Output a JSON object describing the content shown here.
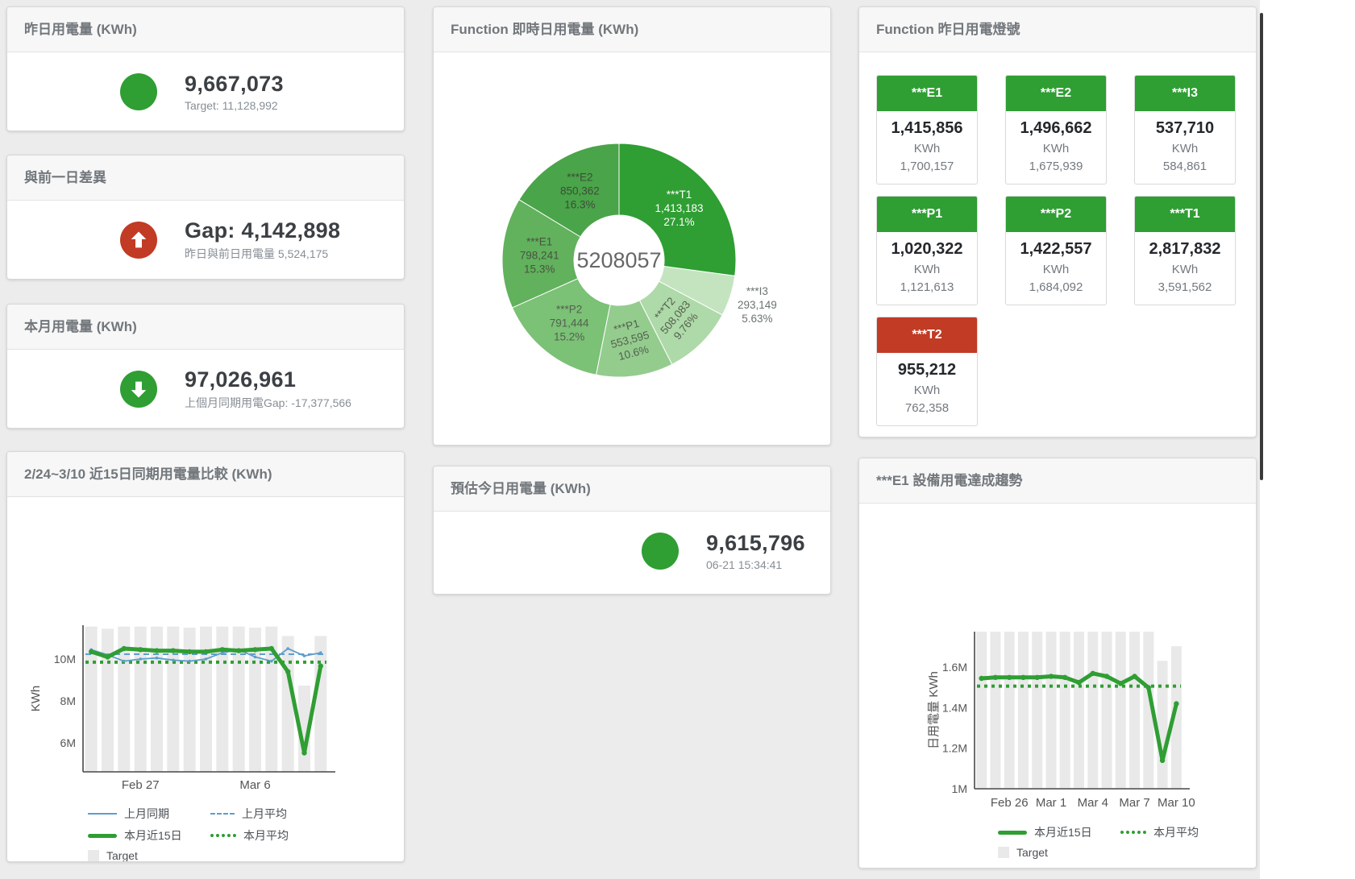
{
  "colors": {
    "primary_green": "#2f9e33",
    "alert_red": "#c13b25",
    "line_blue": "#5f9ecd",
    "target_bar_gray": "#e9e9e9",
    "page_bg": "#ececec"
  },
  "cards": {
    "yesterday": {
      "title": "昨日用電量 (KWh)",
      "value": "9,667,073",
      "subtitle": "Target: 11,128,992"
    },
    "gap": {
      "title": "與前一日差異",
      "value": "Gap: 4,142,898",
      "subtitle": "昨日與前日用電量 5,524,175"
    },
    "month": {
      "title": "本月用電量 (KWh)",
      "value": "97,026,961",
      "subtitle": "上個月同期用電Gap: -17,377,566"
    },
    "forecast": {
      "title": "預估今日用電量 (KWh)",
      "value": "9,615,796",
      "subtitle": "06-21 15:34:41"
    }
  },
  "lights": {
    "title": "Function 昨日用電燈號",
    "tiles": [
      {
        "label": "***E1",
        "value": "1,415,856",
        "unit": "KWh",
        "target": "1,700,157",
        "color": "#2f9e33"
      },
      {
        "label": "***E2",
        "value": "1,496,662",
        "unit": "KWh",
        "target": "1,675,939",
        "color": "#2f9e33"
      },
      {
        "label": "***I3",
        "value": "537,710",
        "unit": "KWh",
        "target": "584,861",
        "color": "#2f9e33"
      },
      {
        "label": "***P1",
        "value": "1,020,322",
        "unit": "KWh",
        "target": "1,121,613",
        "color": "#2f9e33"
      },
      {
        "label": "***P2",
        "value": "1,422,557",
        "unit": "KWh",
        "target": "1,684,092",
        "color": "#2f9e33"
      },
      {
        "label": "***T1",
        "value": "2,817,832",
        "unit": "KWh",
        "target": "3,591,562",
        "color": "#2f9e33"
      },
      {
        "label": "***T2",
        "value": "955,212",
        "unit": "KWh",
        "target": "762,358",
        "color": "#c13b25"
      }
    ]
  },
  "chart_data": [
    {
      "id": "realtime_donut",
      "type": "pie",
      "title": "Function 即時日用電量 (KWh)",
      "center_total": "5208057",
      "slices": [
        {
          "label": "***T1",
          "value": 1413183,
          "display_value": "1,413,183",
          "pct": "27.1%",
          "color": "#2f9e33",
          "label_color": "#ffffff"
        },
        {
          "label": "***I3",
          "value": 293149,
          "display_value": "293,149",
          "pct": "5.63%",
          "color": "#c4e4c0",
          "label_color": "#6b7470",
          "label_r": 180
        },
        {
          "label": "***T2",
          "value": 508083,
          "display_value": "508,083",
          "pct": "9.76%",
          "color": "#aed9a8",
          "label_color": "#54604f",
          "label_rotation": -50
        },
        {
          "label": "***P1",
          "value": 553595,
          "display_value": "553,595",
          "pct": "10.6%",
          "color": "#94cc8e",
          "label_color": "#54604f",
          "label_rotation": -15
        },
        {
          "label": "***P2",
          "value": 791444,
          "display_value": "791,444",
          "pct": "15.2%",
          "color": "#7bc176",
          "label_color": "#54604f"
        },
        {
          "label": "***E1",
          "value": 798241,
          "display_value": "798,241",
          "pct": "15.3%",
          "color": "#61b15d",
          "label_color": "#48543f"
        },
        {
          "label": "***E2",
          "value": 850362,
          "display_value": "850,362",
          "pct": "16.3%",
          "color": "#4aa449",
          "label_color": "#3d4c3a"
        }
      ]
    },
    {
      "id": "compare",
      "type": "line+bar",
      "title": "2/24~3/10 近15日同期用電量比較 (KWh)",
      "ylabel": "KWh",
      "n": 15,
      "ylim": [
        4.615,
        11.615
      ],
      "y_ticks": [
        {
          "v": 6,
          "label": "6M"
        },
        {
          "v": 8,
          "label": "8M"
        },
        {
          "v": 10,
          "label": "10M"
        }
      ],
      "x_ticks": [
        {
          "i": 3,
          "label": "Feb 27"
        },
        {
          "i": 10,
          "label": "Mar 6"
        }
      ],
      "bar_color": "#e9e9e9",
      "target": [
        11.55,
        11.45,
        11.55,
        11.55,
        11.55,
        11.55,
        11.5,
        11.55,
        11.55,
        11.55,
        11.5,
        11.55,
        11.1,
        8.73,
        11.1
      ],
      "series": [
        {
          "kind": "hline",
          "name": "上月平均",
          "color": "#5f9ecd",
          "style": "dashed",
          "value": 10.23
        },
        {
          "kind": "hline",
          "name": "本月平均",
          "color": "#2f9e33",
          "style": "dotted",
          "value": 9.85
        },
        {
          "kind": "line",
          "name": "上月同期",
          "color": "#5f9ecd",
          "style": "thin",
          "values": [
            10.45,
            10.2,
            9.9,
            10.0,
            10.05,
            9.95,
            9.9,
            10.0,
            10.3,
            10.45,
            10.1,
            9.9,
            10.5,
            10.15,
            10.3
          ]
        },
        {
          "kind": "line",
          "name": "本月近15日",
          "color": "#2f9e33",
          "style": "thick",
          "values": [
            10.35,
            10.1,
            10.5,
            10.45,
            10.4,
            10.4,
            10.35,
            10.35,
            10.45,
            10.4,
            10.45,
            10.5,
            9.4,
            5.52,
            9.67
          ]
        }
      ],
      "legend": [
        {
          "type": "line-thin",
          "color": "#5f9ecd",
          "label": "上月同期"
        },
        {
          "type": "line-dashed",
          "color": "#5f9ecd",
          "label": "上月平均"
        },
        {
          "type": "line-thick",
          "color": "#2f9e33",
          "label": "本月近15日"
        },
        {
          "type": "line-dotted",
          "color": "#2f9e33",
          "label": "本月平均"
        },
        {
          "type": "square",
          "color": "#e9e9e9",
          "label": "Target"
        }
      ]
    },
    {
      "id": "trend",
      "type": "line+bar",
      "title": "***E1 設備用電達成趨勢",
      "ylabel": "日用電量 KWh",
      "n": 15,
      "ylim": [
        1.0,
        1.776
      ],
      "y_ticks": [
        {
          "v": 1,
          "label": "1M"
        },
        {
          "v": 1.2,
          "label": "1.2M"
        },
        {
          "v": 1.4,
          "label": "1.4M"
        },
        {
          "v": 1.6,
          "label": "1.6M"
        }
      ],
      "x_ticks": [
        {
          "i": 2,
          "label": "Feb 26"
        },
        {
          "i": 5,
          "label": "Mar 1"
        },
        {
          "i": 8,
          "label": "Mar 4"
        },
        {
          "i": 11,
          "label": "Mar 7"
        },
        {
          "i": 14,
          "label": "Mar 10"
        }
      ],
      "bar_color": "#e9e9e9",
      "target": [
        1.776,
        1.776,
        1.776,
        1.776,
        1.776,
        1.776,
        1.776,
        1.776,
        1.776,
        1.776,
        1.776,
        1.776,
        1.776,
        1.632,
        1.704
      ],
      "series": [
        {
          "kind": "hline",
          "name": "本月平均",
          "color": "#2f9e33",
          "style": "dotted",
          "value": 1.507
        },
        {
          "kind": "line",
          "name": "本月近15日",
          "color": "#2f9e33",
          "style": "thick",
          "values": [
            1.545,
            1.55,
            1.55,
            1.55,
            1.55,
            1.555,
            1.55,
            1.525,
            1.57,
            1.555,
            1.52,
            1.555,
            1.5,
            1.14,
            1.42
          ]
        }
      ],
      "legend": [
        {
          "type": "line-thick",
          "color": "#2f9e33",
          "label": "本月近15日"
        },
        {
          "type": "line-dotted",
          "color": "#2f9e33",
          "label": "本月平均"
        },
        {
          "type": "square",
          "color": "#e9e9e9",
          "label": "Target"
        }
      ]
    }
  ]
}
